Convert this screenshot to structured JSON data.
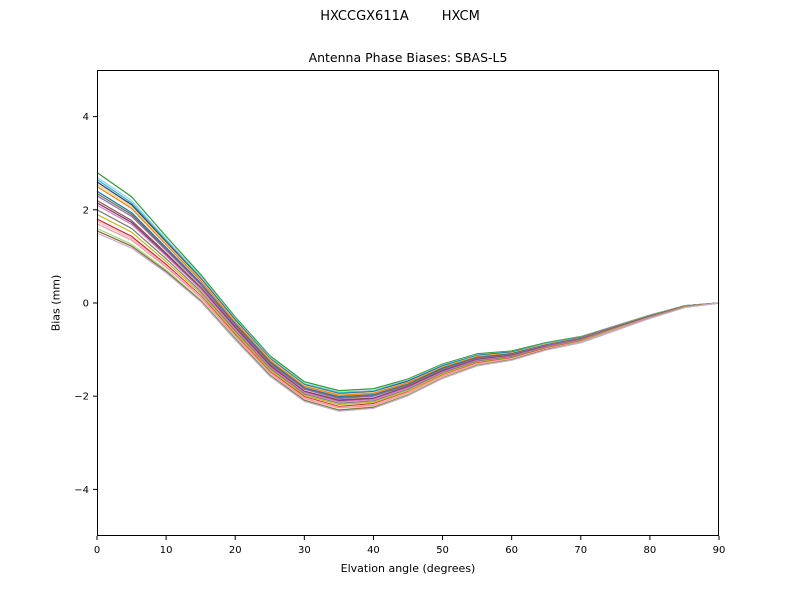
{
  "figure": {
    "suptitle_left": "HXCCGX611A",
    "suptitle_right": "HXCM",
    "axes_title": "Antenna Phase Biases: SBAS-L5",
    "xlabel": "Elvation angle (degrees)",
    "ylabel": "Bias (mm)"
  },
  "chart_data": {
    "type": "line",
    "suptitle": "HXCCGX611A      HXCM",
    "title": "Antenna Phase Biases: SBAS-L5",
    "xlabel": "Elvation angle (degrees)",
    "ylabel": "Bias (mm)",
    "xlim": [
      0,
      90
    ],
    "ylim": [
      -5,
      5
    ],
    "xticks": [
      0,
      10,
      20,
      30,
      40,
      50,
      60,
      70,
      80,
      90
    ],
    "yticks": [
      -4,
      -2,
      0,
      2,
      4
    ],
    "grid": false,
    "legend": false,
    "x": [
      0,
      5,
      10,
      15,
      20,
      25,
      30,
      35,
      40,
      45,
      50,
      55,
      60,
      65,
      70,
      75,
      80,
      85,
      90
    ],
    "series": [
      {
        "name": "series-01",
        "color": "#2ca02c",
        "values": [
          2.8,
          2.28,
          1.43,
          0.61,
          -0.3,
          -1.13,
          -1.69,
          -1.88,
          -1.84,
          -1.63,
          -1.31,
          -1.09,
          -1.03,
          -0.85,
          -0.72,
          -0.49,
          -0.26,
          -0.06,
          0.0
        ]
      },
      {
        "name": "series-02",
        "color": "#aec7e8",
        "values": [
          2.7,
          2.2,
          1.37,
          0.57,
          -0.33,
          -1.16,
          -1.73,
          -1.91,
          -1.88,
          -1.65,
          -1.33,
          -1.11,
          -1.05,
          -0.87,
          -0.73,
          -0.49,
          -0.27,
          -0.06,
          0.0
        ]
      },
      {
        "name": "series-03",
        "color": "#17becf",
        "values": [
          2.65,
          2.15,
          1.34,
          0.54,
          -0.35,
          -1.18,
          -1.74,
          -1.93,
          -1.89,
          -1.67,
          -1.34,
          -1.12,
          -1.05,
          -0.87,
          -0.74,
          -0.5,
          -0.27,
          -0.06,
          0.0
        ]
      },
      {
        "name": "series-04",
        "color": "#393b79",
        "values": [
          2.6,
          2.11,
          1.31,
          0.52,
          -0.37,
          -1.2,
          -1.76,
          -1.95,
          -1.91,
          -1.68,
          -1.36,
          -1.13,
          -1.06,
          -0.88,
          -0.74,
          -0.5,
          -0.27,
          -0.06,
          0.0
        ]
      },
      {
        "name": "series-05",
        "color": "#dbdb8d",
        "values": [
          2.55,
          2.07,
          1.28,
          0.5,
          -0.39,
          -1.21,
          -1.77,
          -1.96,
          -1.92,
          -1.7,
          -1.37,
          -1.14,
          -1.07,
          -0.88,
          -0.75,
          -0.51,
          -0.27,
          -0.06,
          0.0
        ]
      },
      {
        "name": "series-06",
        "color": "#ff7f0e",
        "values": [
          2.5,
          2.03,
          1.25,
          0.48,
          -0.41,
          -1.23,
          -1.79,
          -1.98,
          -1.94,
          -1.71,
          -1.38,
          -1.15,
          -1.08,
          -0.89,
          -0.75,
          -0.51,
          -0.28,
          -0.07,
          0.0
        ]
      },
      {
        "name": "series-07",
        "color": "#1f77b4",
        "values": [
          2.4,
          1.94,
          1.19,
          0.43,
          -0.45,
          -1.26,
          -1.82,
          -2.01,
          -1.97,
          -1.74,
          -1.4,
          -1.17,
          -1.09,
          -0.9,
          -0.76,
          -0.52,
          -0.28,
          -0.07,
          0.0
        ]
      },
      {
        "name": "series-08",
        "color": "#637939",
        "values": [
          2.35,
          1.9,
          1.16,
          0.41,
          -0.47,
          -1.28,
          -1.84,
          -2.03,
          -1.99,
          -1.75,
          -1.42,
          -1.18,
          -1.1,
          -0.91,
          -0.77,
          -0.52,
          -0.28,
          -0.07,
          0.0
        ]
      },
      {
        "name": "series-09",
        "color": "#9467bd",
        "values": [
          2.3,
          1.86,
          1.13,
          0.39,
          -0.49,
          -1.3,
          -1.85,
          -2.05,
          -2.0,
          -1.77,
          -1.43,
          -1.19,
          -1.11,
          -0.91,
          -0.77,
          -0.53,
          -0.29,
          -0.07,
          0.0
        ]
      },
      {
        "name": "series-10",
        "color": "#8c564b",
        "values": [
          2.2,
          1.77,
          1.07,
          0.34,
          -0.52,
          -1.33,
          -1.89,
          -2.08,
          -2.04,
          -1.79,
          -1.45,
          -1.21,
          -1.12,
          -0.93,
          -0.78,
          -0.53,
          -0.29,
          -0.07,
          0.0
        ]
      },
      {
        "name": "series-11",
        "color": "#7b4173",
        "values": [
          2.15,
          1.73,
          1.04,
          0.32,
          -0.54,
          -1.35,
          -1.9,
          -2.1,
          -2.05,
          -1.81,
          -1.46,
          -1.22,
          -1.13,
          -0.93,
          -0.79,
          -0.54,
          -0.29,
          -0.08,
          0.0
        ]
      },
      {
        "name": "series-12",
        "color": "#e377c2",
        "values": [
          2.1,
          1.69,
          1.01,
          0.3,
          -0.56,
          -1.37,
          -1.92,
          -2.12,
          -2.07,
          -1.82,
          -1.48,
          -1.23,
          -1.14,
          -0.94,
          -0.79,
          -0.54,
          -0.3,
          -0.08,
          0.0
        ]
      },
      {
        "name": "series-13",
        "color": "#7f7f7f",
        "values": [
          2.0,
          1.6,
          0.95,
          0.25,
          -0.6,
          -1.4,
          -1.95,
          -2.15,
          -2.1,
          -1.85,
          -1.5,
          -1.25,
          -1.15,
          -0.95,
          -0.8,
          -0.55,
          -0.3,
          -0.08,
          0.0
        ]
      },
      {
        "name": "series-14",
        "color": "#bcbd22",
        "values": [
          1.9,
          1.52,
          0.89,
          0.21,
          -0.64,
          -1.43,
          -1.98,
          -2.18,
          -2.13,
          -1.88,
          -1.52,
          -1.27,
          -1.17,
          -0.96,
          -0.81,
          -0.56,
          -0.31,
          -0.08,
          0.0
        ]
      },
      {
        "name": "series-15",
        "color": "#d62728",
        "values": [
          1.8,
          1.43,
          0.83,
          0.16,
          -0.68,
          -1.47,
          -2.01,
          -2.22,
          -2.16,
          -1.91,
          -1.55,
          -1.29,
          -1.18,
          -0.97,
          -0.82,
          -0.57,
          -0.31,
          -0.09,
          0.0
        ]
      },
      {
        "name": "series-16",
        "color": "#f7b6d2",
        "values": [
          1.75,
          1.39,
          0.8,
          0.14,
          -0.7,
          -1.49,
          -2.03,
          -2.24,
          -2.18,
          -1.92,
          -1.56,
          -1.3,
          -1.19,
          -0.98,
          -0.83,
          -0.57,
          -0.31,
          -0.09,
          0.0
        ]
      },
      {
        "name": "series-17",
        "color": "#ff9896",
        "values": [
          1.7,
          1.35,
          0.77,
          0.12,
          -0.71,
          -1.5,
          -2.05,
          -2.25,
          -2.2,
          -1.93,
          -1.57,
          -1.31,
          -1.2,
          -0.99,
          -0.83,
          -0.57,
          -0.32,
          -0.09,
          0.0
        ]
      },
      {
        "name": "series-18",
        "color": "#98df8a",
        "values": [
          1.6,
          1.26,
          0.71,
          0.07,
          -0.75,
          -1.54,
          -2.08,
          -2.29,
          -2.23,
          -1.96,
          -1.6,
          -1.33,
          -1.21,
          -1.0,
          -0.84,
          -0.58,
          -0.32,
          -0.09,
          0.0
        ]
      },
      {
        "name": "series-19",
        "color": "#8c6d31",
        "values": [
          1.55,
          1.22,
          0.68,
          0.05,
          -0.77,
          -1.55,
          -2.09,
          -2.3,
          -2.24,
          -1.98,
          -1.61,
          -1.34,
          -1.22,
          -1.0,
          -0.85,
          -0.59,
          -0.32,
          -0.09,
          0.0
        ]
      },
      {
        "name": "series-20",
        "color": "#c5b0d5",
        "values": [
          1.5,
          1.18,
          0.65,
          0.03,
          -0.79,
          -1.57,
          -2.11,
          -2.32,
          -2.26,
          -1.99,
          -1.62,
          -1.35,
          -1.23,
          -1.01,
          -0.85,
          -0.59,
          -0.33,
          -0.1,
          0.0
        ]
      }
    ]
  }
}
